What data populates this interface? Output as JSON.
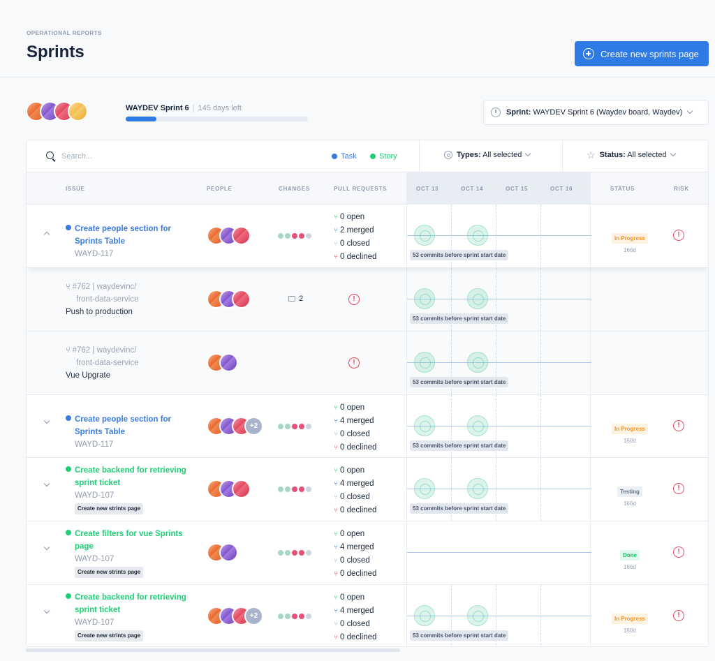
{
  "header": {
    "eyebrow": "OPERATIONAL REPORTS",
    "title": "Sprints",
    "create_button": "Create new sprints page"
  },
  "sprint": {
    "name": "WAYDEV Sprint 6",
    "days_left": "145 days left",
    "progress": 0.17,
    "selector_label": "Sprint:",
    "selector_value": "WAYDEV Sprint 6 (Waydev board, Waydev)"
  },
  "toolbar": {
    "search_placeholder": "Search...",
    "legend_task": "Task",
    "legend_story": "Story",
    "types_label": "Types:",
    "types_value": "All selected",
    "status_label": "Status:",
    "status_value": "All selected"
  },
  "columns": {
    "issue": "ISSUE",
    "people": "PEOPLE",
    "changes": "CHANGES",
    "pull_requests": "PULL REQUESTS",
    "dates": [
      "OCT 13",
      "OCT 14",
      "OCT 15",
      "OCT 16"
    ],
    "status": "STATUS",
    "risk": "RISK"
  },
  "commit_note": "53 commits before sprint start date",
  "rows": [
    {
      "title": "Create people section for Sprints Table",
      "title_lines": [
        "Create people section for",
        "Sprints Table"
      ],
      "id": "WAYD-117",
      "prs": [
        "0 open",
        "2 merged",
        "0 closed",
        "0 declined"
      ],
      "status": "In Progress",
      "days": "166d"
    },
    {
      "pr_lines": [
        "#762 | waydevinc/",
        "front-data-service"
      ],
      "task": "Push to production",
      "comments": "2"
    },
    {
      "pr_lines": [
        "#762 | waydevinc/",
        "front-data-service"
      ],
      "task": "Vue Upgrate"
    },
    {
      "title_lines": [
        "Create people section for",
        "Sprints Table"
      ],
      "id": "WAYD-117",
      "more_people": "+2",
      "prs": [
        "0 open",
        "4 merged",
        "0 closed",
        "0 declined"
      ],
      "status": "In Progress",
      "days": "166d"
    },
    {
      "title_lines": [
        "Create backend for retrieving",
        "sprint ticket"
      ],
      "id": "WAYD-107",
      "tag": "Create new strints page",
      "prs": [
        "0 open",
        "4 merged",
        "0 closed",
        "0 declined"
      ],
      "status": "Testing",
      "days": "166d"
    },
    {
      "title_lines": [
        "Create filters for vue Sprints",
        "page"
      ],
      "id": "WAYD-107",
      "tag": "Create new strints page",
      "prs": [
        "0 open",
        "4 merged",
        "0 closed",
        "0 declined"
      ],
      "status": "Done",
      "days": "166d"
    },
    {
      "title_lines": [
        "Create backend for retrieving",
        "sprint ticket"
      ],
      "id": "WAYD-107",
      "tag": "Create new strints page",
      "more_people": "+2",
      "prs": [
        "0 open",
        "4 merged",
        "0 closed",
        "0 declined"
      ],
      "status": "In Progress",
      "days": "166d"
    }
  ],
  "colors": {
    "accent": "#2f7be6",
    "task": "#3a7be0",
    "story": "#1fcf75",
    "risk": "#e54359",
    "in_progress": "#f0962d",
    "done": "#1fbf6c"
  },
  "icons": [
    "plus-circle-icon",
    "clock-icon",
    "search-icon",
    "target-icon",
    "star-icon",
    "chevron-down-icon",
    "chevron-up-icon",
    "pull-request-icon",
    "comment-icon",
    "alert-icon"
  ]
}
